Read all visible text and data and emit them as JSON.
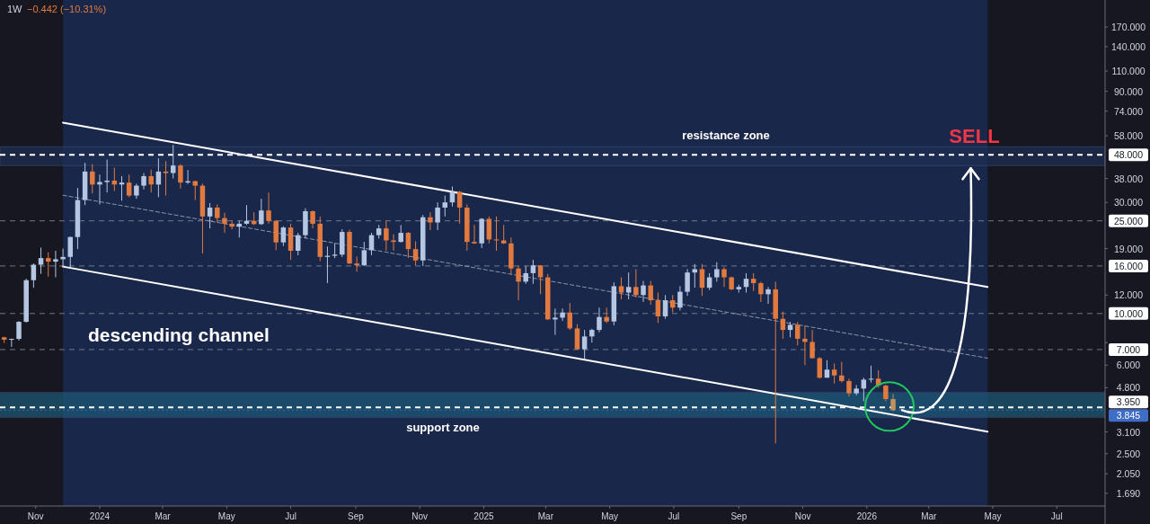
{
  "chart_data": {
    "type": "candlestick",
    "title": "1W",
    "annotations": [
      "−0.442 (−10.31%)",
      "descending channel",
      {
        "text": "SELL",
        "x": "2026-04-10",
        "y": 42
      }
    ],
    "x": [
      "2023-10-02",
      "2023-10-09",
      "2023-10-16",
      "2023-10-23",
      "2023-10-30",
      "2023-11-06",
      "2023-11-13",
      "2023-11-20",
      "2023-11-27",
      "2023-12-04",
      "2023-12-11",
      "2023-12-18",
      "2023-12-25",
      "2024-01-01",
      "2024-01-08",
      "2024-01-15",
      "2024-01-22",
      "2024-01-29",
      "2024-02-05",
      "2024-02-12",
      "2024-02-19",
      "2024-02-26",
      "2024-03-04",
      "2024-03-11",
      "2024-03-18",
      "2024-03-25",
      "2024-04-01",
      "2024-04-08",
      "2024-04-15",
      "2024-04-22",
      "2024-04-29",
      "2024-05-06",
      "2024-05-13",
      "2024-05-20",
      "2024-05-27",
      "2024-06-03",
      "2024-06-10",
      "2024-06-17",
      "2024-06-24",
      "2024-07-01",
      "2024-07-08",
      "2024-07-15",
      "2024-07-22",
      "2024-07-29",
      "2024-08-05",
      "2024-08-12",
      "2024-08-19",
      "2024-08-26",
      "2024-09-02",
      "2024-09-09",
      "2024-09-16",
      "2024-09-23",
      "2024-09-30",
      "2024-10-07",
      "2024-10-14",
      "2024-10-21",
      "2024-10-28",
      "2024-11-04",
      "2024-11-11",
      "2024-11-18",
      "2024-11-25",
      "2024-12-02",
      "2024-12-09",
      "2024-12-16",
      "2024-12-23",
      "2024-12-30",
      "2025-01-06",
      "2025-01-13",
      "2025-01-20",
      "2025-01-27",
      "2025-02-03",
      "2025-02-10",
      "2025-02-17",
      "2025-02-24",
      "2025-03-03",
      "2025-03-10",
      "2025-03-17",
      "2025-03-24",
      "2025-03-31",
      "2025-04-07",
      "2025-04-14",
      "2025-04-21",
      "2025-04-28",
      "2025-05-05",
      "2025-05-12",
      "2025-05-19",
      "2025-05-26",
      "2025-06-02",
      "2025-06-09",
      "2025-06-16",
      "2025-06-23",
      "2025-06-30",
      "2025-07-07",
      "2025-07-14",
      "2025-07-21",
      "2025-07-28",
      "2025-08-04",
      "2025-08-11",
      "2025-08-18",
      "2025-08-25",
      "2025-09-01",
      "2025-09-08",
      "2025-09-15",
      "2025-09-22",
      "2025-09-29",
      "2025-10-06",
      "2025-10-13",
      "2025-10-20",
      "2025-10-27",
      "2025-11-03",
      "2025-11-10",
      "2025-11-17",
      "2025-11-24",
      "2025-12-01",
      "2025-12-08",
      "2025-12-15",
      "2025-12-22",
      "2025-12-29",
      "2026-01-05",
      "2026-01-12",
      "2026-01-19",
      "2026-01-26"
    ],
    "ohlc": [
      [
        7.9,
        7.95,
        7.47,
        7.72
      ],
      [
        7.72,
        7.8,
        7.19,
        7.78
      ],
      [
        7.78,
        9.27,
        7.65,
        9.21
      ],
      [
        9.21,
        14.1,
        9.15,
        13.9
      ],
      [
        13.9,
        16.4,
        12.9,
        16.2
      ],
      [
        16.2,
        19.2,
        14.8,
        17.3
      ],
      [
        17.3,
        18.3,
        14.4,
        16.7
      ],
      [
        16.7,
        18.6,
        14.3,
        17.1
      ],
      [
        17.1,
        19.0,
        15.8,
        17.5
      ],
      [
        17.5,
        21.4,
        15.8,
        21.3
      ],
      [
        21.3,
        34.6,
        18.9,
        30.7
      ],
      [
        30.7,
        44.4,
        29.2,
        40.7
      ],
      [
        40.7,
        43.8,
        32.8,
        35.8
      ],
      [
        35.8,
        39.5,
        29.4,
        36.7
      ],
      [
        36.7,
        45.8,
        33.1,
        37.2
      ],
      [
        37.2,
        42.3,
        33.6,
        35.8
      ],
      [
        35.8,
        38.9,
        30.5,
        36.5
      ],
      [
        36.5,
        39.5,
        31.6,
        32.1
      ],
      [
        32.1,
        36.1,
        31.1,
        35.4
      ],
      [
        35.4,
        40.1,
        34.1,
        38.9
      ],
      [
        38.9,
        41.5,
        33.1,
        35.8
      ],
      [
        35.8,
        46.4,
        31.6,
        40.7
      ],
      [
        40.7,
        45.1,
        32.1,
        40.1
      ],
      [
        40.1,
        53.0,
        38.0,
        43.2
      ],
      [
        43.2,
        43.8,
        34.4,
        36.5
      ],
      [
        36.5,
        41.3,
        36.0,
        37.0
      ],
      [
        37.0,
        37.2,
        30.7,
        35.4
      ],
      [
        35.4,
        36.1,
        18.1,
        26.1
      ],
      [
        26.1,
        29.8,
        23.2,
        28.5
      ],
      [
        28.5,
        29.4,
        24.6,
        25.7
      ],
      [
        25.7,
        27.1,
        22.2,
        24.3
      ],
      [
        24.3,
        25.1,
        23.0,
        23.6
      ],
      [
        23.6,
        25.0,
        21.2,
        24.3
      ],
      [
        24.3,
        29.2,
        24.0,
        25.0
      ],
      [
        25.0,
        27.2,
        24.0,
        24.2
      ],
      [
        24.2,
        31.1,
        24.0,
        27.7
      ],
      [
        27.7,
        33.1,
        24.3,
        25.0
      ],
      [
        25.0,
        25.2,
        18.7,
        20.2
      ],
      [
        20.2,
        23.7,
        19.5,
        23.4
      ],
      [
        23.4,
        24.3,
        17.0,
        18.6
      ],
      [
        18.6,
        22.2,
        17.8,
        21.7
      ],
      [
        21.7,
        28.3,
        21.0,
        27.5
      ],
      [
        27.5,
        27.7,
        23.2,
        24.3
      ],
      [
        24.3,
        26.1,
        16.8,
        17.5
      ],
      [
        17.5,
        19.4,
        13.5,
        17.7
      ],
      [
        17.7,
        20.0,
        17.3,
        17.9
      ],
      [
        17.9,
        23.0,
        17.5,
        22.4
      ],
      [
        22.4,
        22.9,
        16.3,
        16.4
      ],
      [
        16.4,
        17.6,
        15.1,
        16.1
      ],
      [
        16.1,
        20.3,
        16.0,
        18.7
      ],
      [
        18.7,
        22.2,
        17.8,
        21.7
      ],
      [
        21.7,
        24.0,
        21.0,
        23.2
      ],
      [
        23.2,
        25.0,
        18.6,
        20.6
      ],
      [
        20.6,
        21.9,
        18.6,
        20.3
      ],
      [
        20.3,
        24.0,
        20.2,
        22.2
      ],
      [
        22.2,
        22.4,
        17.3,
        18.9
      ],
      [
        18.9,
        20.4,
        16.1,
        16.9
      ],
      [
        16.9,
        26.5,
        16.0,
        25.9
      ],
      [
        25.9,
        27.2,
        22.8,
        24.6
      ],
      [
        24.6,
        30.0,
        22.8,
        28.5
      ],
      [
        28.5,
        32.1,
        26.1,
        30.0
      ],
      [
        30.0,
        35.1,
        28.8,
        33.3
      ],
      [
        33.3,
        33.6,
        24.3,
        28.5
      ],
      [
        28.5,
        29.4,
        18.6,
        20.3
      ],
      [
        20.3,
        24.0,
        19.9,
        20.0
      ],
      [
        20.0,
        25.7,
        19.1,
        25.5
      ],
      [
        25.5,
        26.1,
        20.0,
        20.8
      ],
      [
        20.8,
        26.1,
        18.6,
        20.6
      ],
      [
        20.6,
        24.0,
        19.9,
        20.0
      ],
      [
        20.0,
        21.2,
        14.7,
        15.6
      ],
      [
        15.6,
        16.0,
        11.4,
        13.7
      ],
      [
        13.7,
        16.0,
        13.4,
        14.9
      ],
      [
        14.9,
        17.0,
        13.4,
        16.1
      ],
      [
        16.1,
        16.1,
        12.1,
        14.3
      ],
      [
        14.3,
        14.8,
        9.4,
        9.43
      ],
      [
        9.43,
        10.5,
        8.1,
        9.6
      ],
      [
        9.6,
        10.5,
        9.3,
        10.1
      ],
      [
        10.1,
        11.1,
        8.5,
        8.63
      ],
      [
        8.63,
        9.0,
        7.0,
        7.02
      ],
      [
        7.02,
        8.5,
        6.4,
        7.97
      ],
      [
        7.97,
        8.6,
        7.5,
        8.5
      ],
      [
        8.5,
        10.6,
        8.3,
        9.66
      ],
      [
        9.66,
        10.6,
        9.1,
        9.24
      ],
      [
        9.24,
        13.6,
        8.9,
        13.1
      ],
      [
        13.1,
        14.3,
        11.5,
        12.3
      ],
      [
        12.3,
        15.0,
        11.5,
        13.0
      ],
      [
        13.0,
        15.5,
        11.7,
        12.0
      ],
      [
        12.0,
        13.8,
        11.2,
        13.2
      ],
      [
        13.2,
        13.8,
        10.9,
        11.4
      ],
      [
        11.4,
        12.3,
        9.1,
        9.72
      ],
      [
        9.72,
        12.0,
        9.5,
        11.4
      ],
      [
        11.4,
        12.0,
        10.1,
        10.6
      ],
      [
        10.6,
        13.1,
        10.3,
        12.4
      ],
      [
        12.4,
        15.5,
        11.9,
        15.0
      ],
      [
        15.0,
        16.3,
        12.9,
        15.5
      ],
      [
        15.5,
        16.3,
        11.9,
        12.9
      ],
      [
        12.9,
        14.9,
        12.6,
        14.3
      ],
      [
        14.3,
        16.6,
        13.7,
        15.5
      ],
      [
        15.5,
        15.8,
        13.0,
        14.3
      ],
      [
        14.3,
        14.4,
        12.6,
        12.7
      ],
      [
        12.7,
        13.3,
        12.3,
        13.0
      ],
      [
        13.0,
        14.9,
        12.3,
        14.1
      ],
      [
        14.1,
        14.9,
        12.5,
        13.5
      ],
      [
        13.5,
        13.7,
        11.2,
        12.1
      ],
      [
        12.1,
        13.0,
        11.0,
        12.7
      ],
      [
        12.7,
        13.7,
        2.77,
        9.49
      ],
      [
        9.49,
        10.2,
        7.79,
        8.5
      ],
      [
        8.5,
        9.2,
        7.9,
        8.94
      ],
      [
        8.94,
        9.2,
        7.3,
        7.79
      ],
      [
        7.79,
        8.9,
        6.0,
        7.55
      ],
      [
        7.55,
        8.5,
        6.4,
        6.43
      ],
      [
        6.43,
        6.5,
        5.25,
        5.3
      ],
      [
        5.3,
        6.3,
        5.3,
        5.74
      ],
      [
        5.74,
        6.1,
        5.0,
        5.42
      ],
      [
        5.42,
        6.2,
        5.05,
        5.13
      ],
      [
        5.13,
        5.25,
        4.4,
        4.54
      ],
      [
        4.54,
        4.93,
        4.45,
        4.76
      ],
      [
        4.76,
        5.3,
        4.2,
        5.2
      ],
      [
        5.2,
        5.97,
        5.05,
        5.25
      ],
      [
        5.25,
        5.7,
        4.8,
        4.9
      ],
      [
        4.9,
        4.95,
        4.2,
        4.29
      ],
      [
        4.29,
        4.51,
        3.8,
        3.845
      ]
    ],
    "colors": [
      "#e27a3f",
      "#b4c6e2",
      "#b4c6e2",
      "#b4c6e2",
      "#b4c6e2",
      "#b4c6e2",
      "#e27a3f",
      "#b4c6e2",
      "#b4c6e2",
      "#b4c6e2",
      "#b4c6e2",
      "#b4c6e2",
      "#e27a3f",
      "#b4c6e2",
      "#b4c6e2",
      "#e27a3f",
      "#b4c6e2",
      "#e27a3f",
      "#b4c6e2",
      "#b4c6e2",
      "#e27a3f",
      "#b4c6e2",
      "#e27a3f",
      "#b4c6e2",
      "#e27a3f",
      "#b4c6e2",
      "#e27a3f",
      "#e27a3f",
      "#b4c6e2",
      "#e27a3f",
      "#e27a3f",
      "#e27a3f",
      "#b4c6e2",
      "#b4c6e2",
      "#e27a3f",
      "#b4c6e2",
      "#e27a3f",
      "#e27a3f",
      "#b4c6e2",
      "#e27a3f",
      "#b4c6e2",
      "#b4c6e2",
      "#e27a3f",
      "#e27a3f",
      "#b4c6e2",
      "#b4c6e2",
      "#b4c6e2",
      "#e27a3f",
      "#e27a3f",
      "#b4c6e2",
      "#b4c6e2",
      "#b4c6e2",
      "#e27a3f",
      "#e27a3f",
      "#b4c6e2",
      "#e27a3f",
      "#e27a3f",
      "#b4c6e2",
      "#e27a3f",
      "#b4c6e2",
      "#b4c6e2",
      "#b4c6e2",
      "#e27a3f",
      "#e27a3f",
      "#e27a3f",
      "#b4c6e2",
      "#e27a3f",
      "#e27a3f",
      "#e27a3f",
      "#e27a3f",
      "#e27a3f",
      "#b4c6e2",
      "#b4c6e2",
      "#e27a3f",
      "#e27a3f",
      "#b4c6e2",
      "#b4c6e2",
      "#e27a3f",
      "#e27a3f",
      "#b4c6e2",
      "#b4c6e2",
      "#b4c6e2",
      "#e27a3f",
      "#b4c6e2",
      "#e27a3f",
      "#b4c6e2",
      "#e27a3f",
      "#b4c6e2",
      "#e27a3f",
      "#e27a3f",
      "#b4c6e2",
      "#e27a3f",
      "#b4c6e2",
      "#b4c6e2",
      "#b4c6e2",
      "#e27a3f",
      "#b4c6e2",
      "#b4c6e2",
      "#e27a3f",
      "#e27a3f",
      "#b4c6e2",
      "#b4c6e2",
      "#e27a3f",
      "#e27a3f",
      "#b4c6e2",
      "#e27a3f",
      "#e27a3f",
      "#b4c6e2",
      "#e27a3f",
      "#e27a3f",
      "#e27a3f",
      "#e27a3f",
      "#b4c6e2",
      "#e27a3f",
      "#e27a3f",
      "#e27a3f",
      "#b4c6e2",
      "#b4c6e2",
      "#b4c6e2",
      "#e27a3f",
      "#e27a3f",
      "#c0925e"
    ],
    "series": [
      {
        "type": "line",
        "x": [
          "2023-11-27",
          "2026-04-26"
        ],
        "values": [
          66.0,
          13.0
        ],
        "color": "#ffffff",
        "line_style": "solid"
      },
      {
        "type": "line",
        "x": [
          "2023-11-27",
          "2026-04-26"
        ],
        "values": [
          15.9,
          3.11
        ],
        "color": "#ffffff",
        "line_style": "solid"
      },
      {
        "type": "line",
        "x": [
          "2023-11-27",
          "2026-04-26"
        ],
        "values": [
          32.2,
          6.43
        ],
        "color": "#8a94aa",
        "line_style": "dashed"
      }
    ],
    "log": true,
    "xlim": [
      "2023-09-28",
      "2026-08-16"
    ],
    "xticks": [
      {
        "value": "2023-11-01",
        "label": "Nov"
      },
      {
        "value": "2024-01-01",
        "label": "2024"
      },
      {
        "value": "2024-03-01",
        "label": "Mar"
      },
      {
        "value": "2024-05-01",
        "label": "May"
      },
      {
        "value": "2024-07-01",
        "label": "Jul"
      },
      {
        "value": "2024-09-01",
        "label": "Sep"
      },
      {
        "value": "2024-11-01",
        "label": "Nov"
      },
      {
        "value": "2025-01-01",
        "label": "2025"
      },
      {
        "value": "2025-03-01",
        "label": "Mar"
      },
      {
        "value": "2025-05-01",
        "label": "May"
      },
      {
        "value": "2025-07-01",
        "label": "Jul"
      },
      {
        "value": "2025-09-01",
        "label": "Sep"
      },
      {
        "value": "2025-11-01",
        "label": "Nov"
      },
      {
        "value": "2026-01-01",
        "label": "2026"
      },
      {
        "value": "2026-03-01",
        "label": "Mar"
      },
      {
        "value": "2026-05-01",
        "label": "May"
      },
      {
        "value": "2026-07-01",
        "label": "Jul"
      }
    ],
    "ylim": [
      1.49,
      222
    ],
    "yticks": [
      {
        "value": 170,
        "label": "170.000"
      },
      {
        "value": 140,
        "label": "140.000"
      },
      {
        "value": 110,
        "label": "110.000"
      },
      {
        "value": 90,
        "label": "90.000"
      },
      {
        "value": 74,
        "label": "74.000"
      },
      {
        "value": 58,
        "label": "58.000"
      },
      {
        "value": 38,
        "label": "38.000"
      },
      {
        "value": 30,
        "label": "30.000"
      },
      {
        "value": 19,
        "label": "19.000"
      },
      {
        "value": 12,
        "label": "12.000"
      },
      {
        "value": 7.5,
        "label": null
      },
      {
        "value": 6,
        "label": "6.000"
      },
      {
        "value": 4.8,
        "label": "4.800"
      },
      {
        "value": 3.1,
        "label": "3.100"
      },
      {
        "value": 2.5,
        "label": "2.500"
      },
      {
        "value": 2.05,
        "label": "2.050"
      },
      {
        "value": 1.69,
        "label": "1.690"
      }
    ],
    "ref_lines": [
      {
        "axis": "y",
        "value": 48,
        "label": "48.000",
        "color": "#ffffff",
        "line_style": "dashed"
      },
      {
        "axis": "y",
        "value": 25,
        "label": "25.000",
        "color": "#8a8f9c",
        "line_style": "dashed"
      },
      {
        "axis": "y",
        "value": 16,
        "label": "16.000",
        "color": "#8a8f9c",
        "line_style": "dashed"
      },
      {
        "axis": "y",
        "value": 10,
        "label": "10.000",
        "color": "#8a8f9c",
        "line_style": "dashed"
      },
      {
        "axis": "y",
        "value": 7,
        "label": "7.000",
        "color": "#8a8f9c",
        "line_style": "dashed"
      },
      {
        "axis": "y",
        "value": 3.95,
        "label": "3.950",
        "color": "#ffffff",
        "line_style": "dashed"
      },
      {
        "axis": "y",
        "value": 3.845,
        "label": "3.845",
        "color": "#3f6cc4",
        "line_style": "dotted"
      }
    ],
    "bands": [
      {
        "axis": "x",
        "from": "2023-11-27",
        "to": "2026-04-26",
        "color": "#1b2d58"
      },
      {
        "axis": "y",
        "from": 43.2,
        "to": 52.0,
        "label": "resistance zone",
        "color": "#1e2f55"
      },
      {
        "axis": "y",
        "from": 3.58,
        "to": 4.58,
        "label": "support zone",
        "color": "#1d5a78"
      }
    ],
    "grid": false
  }
}
